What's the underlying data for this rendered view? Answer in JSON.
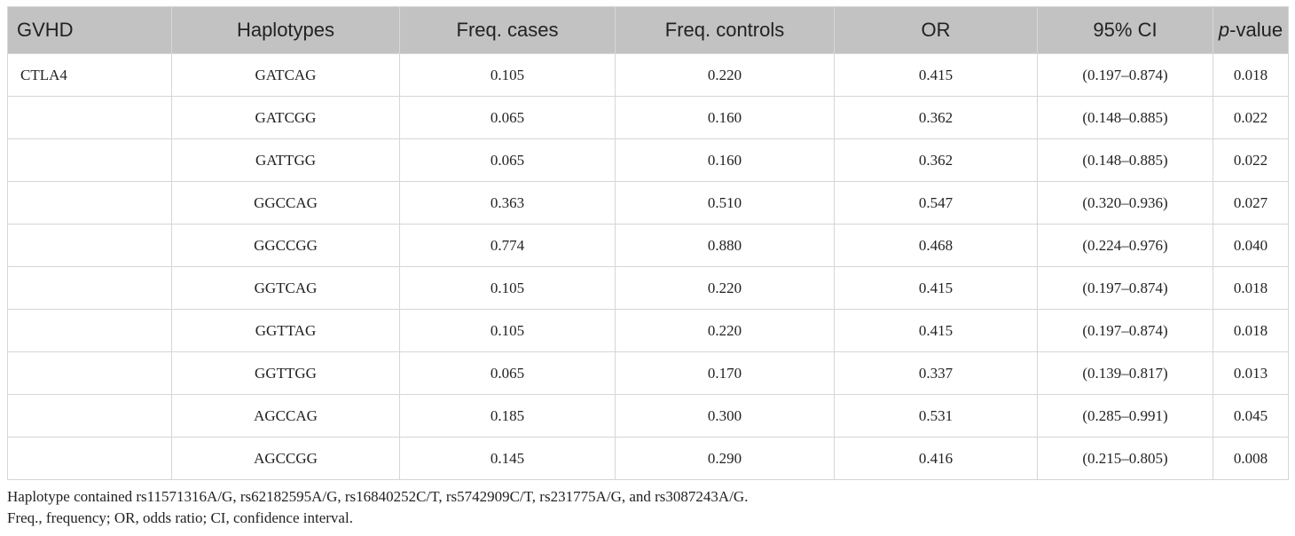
{
  "table": {
    "headers": [
      "GVHD",
      "Haplotypes",
      "Freq. cases",
      "Freq. controls",
      "OR",
      "95% CI",
      "p",
      "-value"
    ],
    "rows": [
      {
        "gvhd": "CTLA4",
        "haplotype": "GATCAG",
        "freq_cases": "0.105",
        "freq_controls": "0.220",
        "or": "0.415",
        "ci": "(0.197–0.874)",
        "p_value": "0.018"
      },
      {
        "gvhd": "",
        "haplotype": "GATCGG",
        "freq_cases": "0.065",
        "freq_controls": "0.160",
        "or": "0.362",
        "ci": "(0.148–0.885)",
        "p_value": "0.022"
      },
      {
        "gvhd": "",
        "haplotype": "GATTGG",
        "freq_cases": "0.065",
        "freq_controls": "0.160",
        "or": "0.362",
        "ci": "(0.148–0.885)",
        "p_value": "0.022"
      },
      {
        "gvhd": "",
        "haplotype": "GGCCAG",
        "freq_cases": "0.363",
        "freq_controls": "0.510",
        "or": "0.547",
        "ci": "(0.320–0.936)",
        "p_value": "0.027"
      },
      {
        "gvhd": "",
        "haplotype": "GGCCGG",
        "freq_cases": "0.774",
        "freq_controls": "0.880",
        "or": "0.468",
        "ci": "(0.224–0.976)",
        "p_value": "0.040"
      },
      {
        "gvhd": "",
        "haplotype": "GGTCAG",
        "freq_cases": "0.105",
        "freq_controls": "0.220",
        "or": "0.415",
        "ci": "(0.197–0.874)",
        "p_value": "0.018"
      },
      {
        "gvhd": "",
        "haplotype": "GGTTAG",
        "freq_cases": "0.105",
        "freq_controls": "0.220",
        "or": "0.415",
        "ci": "(0.197–0.874)",
        "p_value": "0.018"
      },
      {
        "gvhd": "",
        "haplotype": "GGTTGG",
        "freq_cases": "0.065",
        "freq_controls": "0.170",
        "or": "0.337",
        "ci": "(0.139–0.817)",
        "p_value": "0.013"
      },
      {
        "gvhd": "",
        "haplotype": "AGCCAG",
        "freq_cases": "0.185",
        "freq_controls": "0.300",
        "or": "0.531",
        "ci": "(0.285–0.991)",
        "p_value": "0.045"
      },
      {
        "gvhd": "",
        "haplotype": "AGCCGG",
        "freq_cases": "0.145",
        "freq_controls": "0.290",
        "or": "0.416",
        "ci": "(0.215–0.805)",
        "p_value": "0.008"
      }
    ]
  },
  "footnotes": [
    "Haplotype contained rs11571316A/G, rs62182595A/G, rs16840252C/T, rs5742909C/T, rs231775A/G, and rs3087243A/G.",
    "Freq., frequency; OR, odds ratio; CI, confidence interval."
  ],
  "colors": {
    "header_bg": "#c2c2c2",
    "border": "#d6d6d6",
    "text": "#222222"
  }
}
